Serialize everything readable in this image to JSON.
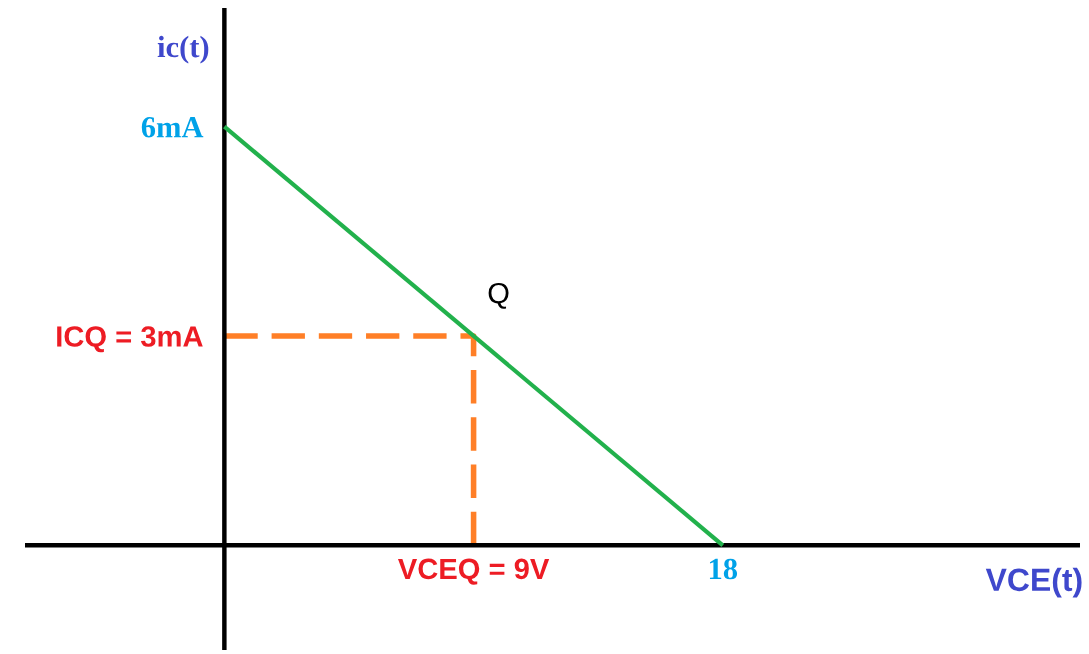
{
  "chart_data": {
    "type": "line",
    "xlabel": "VCE(t)",
    "ylabel": "ic(t)",
    "series": [
      {
        "x": [
          0,
          18
        ],
        "values": [
          6,
          0
        ],
        "color": "#22b14c",
        "line_style": "solid"
      },
      {
        "x": [
          0,
          9,
          9
        ],
        "values": [
          3,
          3,
          0
        ],
        "color": "#ff7f27",
        "line_style": "dashed"
      }
    ],
    "xlim": [
      -7.2,
      30.9
    ],
    "ylim": [
      -1.5,
      7.7
    ],
    "xticks": [
      {
        "value": 9,
        "label": "VCEQ = 9V"
      },
      18
    ],
    "yticks": [
      {
        "value": 3,
        "label": "ICQ = 3mA"
      },
      {
        "value": 6,
        "label": "6mA"
      }
    ],
    "annotations": [
      {
        "text": "Q",
        "x": 9,
        "y": 3
      }
    ]
  }
}
